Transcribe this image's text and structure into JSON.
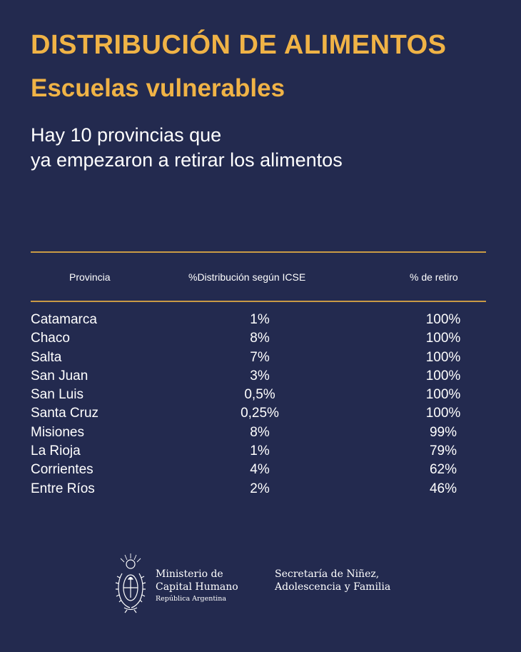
{
  "header": {
    "title": "DISTRIBUCIÓN DE ALIMENTOS",
    "subtitle": "Escuelas vulnerables",
    "lead_line1": "Hay 10 provincias que",
    "lead_line2": "ya empezaron a retirar los alimentos"
  },
  "table": {
    "columns": [
      "Provincia",
      "%Distribución según ICSE",
      "% de retiro"
    ],
    "rows": [
      {
        "provincia": "Catamarca",
        "distribucion": "1%",
        "retiro": "100%"
      },
      {
        "provincia": "Chaco",
        "distribucion": "8%",
        "retiro": "100%"
      },
      {
        "provincia": "Salta",
        "distribucion": "7%",
        "retiro": "100%"
      },
      {
        "provincia": "San Juan",
        "distribucion": "3%",
        "retiro": "100%"
      },
      {
        "provincia": "San Luis",
        "distribucion": "0,5%",
        "retiro": "100%"
      },
      {
        "provincia": "Santa Cruz",
        "distribucion": "0,25%",
        "retiro": "100%"
      },
      {
        "provincia": "Misiones",
        "distribucion": "8%",
        "retiro": "99%"
      },
      {
        "provincia": "La Rioja",
        "distribucion": "1%",
        "retiro": "79%"
      },
      {
        "provincia": "Corrientes",
        "distribucion": "4%",
        "retiro": "62%"
      },
      {
        "provincia": "Entre Ríos",
        "distribucion": "2%",
        "retiro": "46%"
      }
    ]
  },
  "footer": {
    "ministry_line1": "Ministerio de",
    "ministry_line2": "Capital Humano",
    "ministry_line3": "República Argentina",
    "secretaria_line1": "Secretaría de Niñez,",
    "secretaria_line2": "Adolescencia y Familia"
  },
  "colors": {
    "background": "#232a4f",
    "accent": "#f0b346",
    "rule": "#c99a45",
    "text": "#ffffff"
  }
}
